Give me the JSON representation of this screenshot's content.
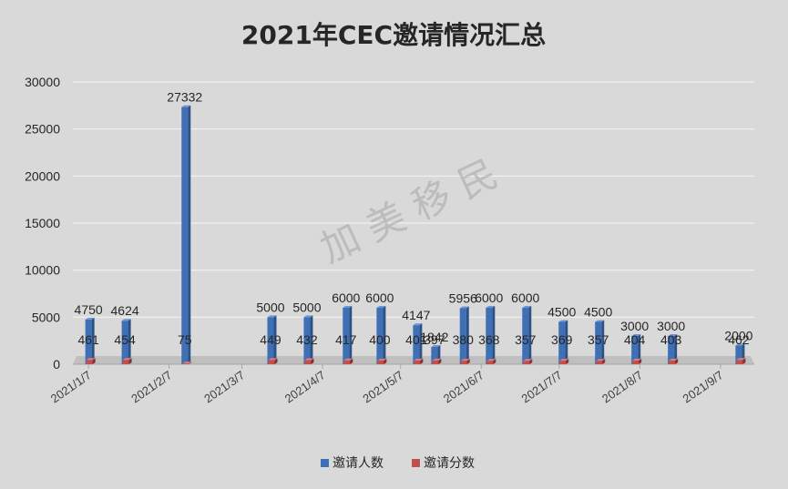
{
  "title": "2021年CEC邀请情况汇总",
  "watermark": "加  美  移  民",
  "legend": {
    "position": "bottom",
    "items": [
      "邀请人数",
      "邀请分数"
    ]
  },
  "colors": {
    "invites": "#3f6fb5",
    "scores": "#c0504d",
    "background": "#d9d9d9",
    "grid": "#f2f2f2",
    "floor": "#bfbfbf"
  },
  "chart_data": {
    "type": "bar",
    "ylim": [
      0,
      30000
    ],
    "yticks": [
      0,
      5000,
      10000,
      15000,
      20000,
      25000,
      30000
    ],
    "x_tick_labels": [
      "2021/1/7",
      "2021/2/7",
      "2021/3/7",
      "2021/4/7",
      "2021/5/7",
      "2021/6/7",
      "2021/7/7",
      "2021/8/7",
      "2021/9/7"
    ],
    "x": [
      "2021/1/7",
      "2021/1/21",
      "2021/2/13",
      "2021/3/18",
      "2021/4/1",
      "2021/4/16",
      "2021/4/29",
      "2021/5/13",
      "2021/5/20",
      "2021/5/31",
      "2021/6/10",
      "2021/6/24",
      "2021/7/8",
      "2021/7/22",
      "2021/8/5",
      "2021/8/19",
      "2021/9/14"
    ],
    "series": [
      {
        "name": "邀请人数",
        "values": [
          4750,
          4624,
          27332,
          5000,
          5000,
          6000,
          6000,
          4147,
          1842,
          5956,
          6000,
          6000,
          4500,
          4500,
          3000,
          3000,
          2000
        ]
      },
      {
        "name": "邀请分数",
        "values": [
          461,
          454,
          75,
          449,
          432,
          417,
          400,
          401,
          397,
          380,
          368,
          357,
          369,
          357,
          404,
          403,
          462
        ]
      }
    ],
    "grid": true
  }
}
